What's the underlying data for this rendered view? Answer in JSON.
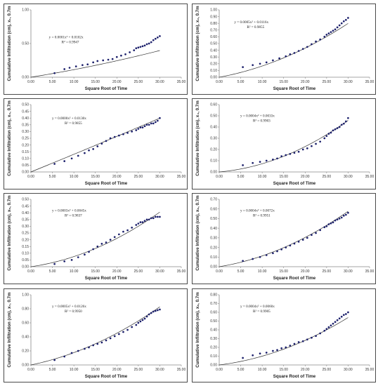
{
  "chart_data": [
    {
      "type": "scatter",
      "xlabel": "Square Root of Time",
      "ylabel": "Cumulative Infiltration (cm), x₁, 0.7m",
      "xlim": [
        0,
        35
      ],
      "ylim": [
        0,
        1.0
      ],
      "xticks": [
        "0.00",
        "5.00",
        "10.00",
        "15.00",
        "20.00",
        "25.00",
        "30.00",
        "35.00"
      ],
      "yticks": [
        "0.00",
        "0.50",
        "1.00"
      ],
      "equation": "y = 0.0001x² + 0.0102x",
      "r2": "R² = 0.9947",
      "fit": {
        "a": 0.0001,
        "b": 0.0102
      },
      "series": [
        {
          "x": [
            5.5,
            7.8,
            9.0,
            10.5,
            12.0,
            13.2,
            14.5,
            15.5,
            16.8,
            18.0,
            19.0,
            20.0,
            21.0,
            22.0,
            23.0,
            24.0,
            24.5,
            25.0,
            25.5,
            26.0,
            26.5,
            27.0,
            27.5,
            28.0,
            28.5,
            29.0,
            29.5,
            30.0
          ],
          "y": [
            0.06,
            0.12,
            0.14,
            0.16,
            0.18,
            0.19,
            0.22,
            0.24,
            0.25,
            0.26,
            0.27,
            0.3,
            0.32,
            0.34,
            0.37,
            0.4,
            0.43,
            0.44,
            0.45,
            0.46,
            0.47,
            0.49,
            0.5,
            0.52,
            0.55,
            0.57,
            0.59,
            0.61
          ]
        }
      ]
    },
    {
      "type": "scatter",
      "xlabel": "Square Root of Time",
      "ylabel": "Cumulative Infiltration (cm), x₂, 0.7m",
      "xlim": [
        0,
        35
      ],
      "ylim": [
        0,
        1.0
      ],
      "xticks": [
        "0.00",
        "5.00",
        "10.00",
        "15.00",
        "20.00",
        "25.00",
        "30.00",
        "35.00"
      ],
      "yticks": [
        "0.00",
        "0.10",
        "0.20",
        "0.30",
        "0.40",
        "0.50",
        "0.60",
        "0.70",
        "0.80",
        "0.90",
        "1.00"
      ],
      "equation": "y = 0.0005x² + 0.0116x",
      "r2": "R² = 0.9855",
      "fit": {
        "a": 0.0005,
        "b": 0.0116
      },
      "series": [
        {
          "x": [
            5.5,
            7.8,
            9.5,
            11.0,
            12.5,
            14.0,
            15.5,
            16.5,
            17.5,
            18.5,
            19.5,
            20.5,
            21.5,
            22.5,
            23.5,
            24.5,
            25.0,
            25.5,
            26.0,
            26.5,
            27.0,
            27.5,
            28.0,
            28.5,
            29.0,
            29.5,
            30.0
          ],
          "y": [
            0.15,
            0.18,
            0.2,
            0.22,
            0.25,
            0.28,
            0.31,
            0.34,
            0.36,
            0.39,
            0.42,
            0.45,
            0.49,
            0.53,
            0.56,
            0.6,
            0.63,
            0.65,
            0.67,
            0.69,
            0.71,
            0.74,
            0.77,
            0.8,
            0.83,
            0.85,
            0.88
          ]
        }
      ]
    },
    {
      "type": "scatter",
      "xlabel": "Square Root of Time",
      "ylabel": "Cumulative Infiltration (cm), x₃, 0.7m",
      "xlim": [
        0,
        35
      ],
      "ylim": [
        0,
        0.5
      ],
      "xticks": [
        "0.00",
        "5.00",
        "10.00",
        "15.00",
        "20.00",
        "25.00",
        "30.00",
        "35.00"
      ],
      "yticks": [
        "0.00",
        "0.05",
        "0.10",
        "0.15",
        "0.20",
        "0.25",
        "0.30",
        "0.35",
        "0.40",
        "0.45",
        "0.50"
      ],
      "equation": "y = 0.0000x² + 0.0130x",
      "r2": "R² = 0.9855",
      "fit": {
        "a": 1e-05,
        "b": 0.013
      },
      "series": [
        {
          "x": [
            5.5,
            7.8,
            9.5,
            11.0,
            12.5,
            13.5,
            14.5,
            15.5,
            16.5,
            17.5,
            18.5,
            19.5,
            20.5,
            21.5,
            22.5,
            23.5,
            24.5,
            25.0,
            25.5,
            26.0,
            26.5,
            27.0,
            27.5,
            28.0,
            28.5,
            29.0,
            29.5,
            30.0
          ],
          "y": [
            0.06,
            0.08,
            0.1,
            0.12,
            0.14,
            0.16,
            0.17,
            0.19,
            0.21,
            0.23,
            0.25,
            0.26,
            0.27,
            0.28,
            0.29,
            0.3,
            0.31,
            0.32,
            0.33,
            0.33,
            0.34,
            0.35,
            0.35,
            0.36,
            0.36,
            0.37,
            0.38,
            0.4
          ]
        }
      ]
    },
    {
      "type": "scatter",
      "xlabel": "Square Root of Time",
      "ylabel": "Cumulative Infiltration (cm), x₄, 0.7m",
      "xlim": [
        0,
        35
      ],
      "ylim": [
        0,
        0.6
      ],
      "xticks": [
        "0.00",
        "5.00",
        "10.00",
        "15.00",
        "20.00",
        "25.00",
        "30.00",
        "35.00"
      ],
      "yticks": [
        "0.00",
        "0.10",
        "0.20",
        "0.30",
        "0.40",
        "0.50",
        "0.60"
      ],
      "equation": "y = 0.0004x² + 0.0033x",
      "r2": "R² = 0.9903",
      "fit": {
        "a": 0.0004,
        "b": 0.0033
      },
      "series": [
        {
          "x": [
            5.5,
            7.8,
            9.5,
            11.0,
            12.5,
            13.5,
            14.5,
            15.5,
            16.5,
            17.5,
            18.5,
            19.5,
            20.5,
            21.5,
            22.5,
            23.5,
            24.5,
            25.0,
            25.5,
            26.0,
            26.5,
            27.0,
            27.5,
            28.0,
            28.5,
            29.0,
            29.5,
            30.0
          ],
          "y": [
            0.06,
            0.08,
            0.09,
            0.1,
            0.11,
            0.12,
            0.14,
            0.15,
            0.16,
            0.17,
            0.18,
            0.2,
            0.21,
            0.23,
            0.25,
            0.27,
            0.3,
            0.32,
            0.34,
            0.35,
            0.37,
            0.38,
            0.39,
            0.4,
            0.42,
            0.43,
            0.45,
            0.48
          ]
        }
      ]
    },
    {
      "type": "scatter",
      "xlabel": "Square Root of Time",
      "ylabel": "Cumulative Infiltration (cm), x₅, 0.7m",
      "xlim": [
        0,
        35
      ],
      "ylim": [
        0,
        0.5
      ],
      "xticks": [
        "0.00",
        "5.00",
        "10.00",
        "15.00",
        "20.00",
        "25.00",
        "30.00",
        "35.00"
      ],
      "yticks": [
        "0.00",
        "0.05",
        "0.10",
        "0.15",
        "0.20",
        "0.25",
        "0.30",
        "0.35",
        "0.40",
        "0.45",
        "0.50"
      ],
      "equation": "y = 0.0003x² + 0.0045x",
      "r2": "R² = 0.9837",
      "fit": {
        "a": 0.0003,
        "b": 0.0045
      },
      "series": [
        {
          "x": [
            5.5,
            7.8,
            9.5,
            11.0,
            12.5,
            13.5,
            14.5,
            15.5,
            16.5,
            17.5,
            18.5,
            19.5,
            20.5,
            21.5,
            22.5,
            23.5,
            24.5,
            25.0,
            25.5,
            26.0,
            26.5,
            27.0,
            27.5,
            28.0,
            28.5,
            29.0,
            29.5,
            30.0
          ],
          "y": [
            0.02,
            0.04,
            0.05,
            0.07,
            0.09,
            0.11,
            0.13,
            0.15,
            0.17,
            0.18,
            0.2,
            0.22,
            0.24,
            0.26,
            0.27,
            0.29,
            0.31,
            0.32,
            0.33,
            0.33,
            0.34,
            0.35,
            0.35,
            0.36,
            0.36,
            0.37,
            0.37,
            0.37
          ]
        }
      ]
    },
    {
      "type": "scatter",
      "xlabel": "Square Root of Time",
      "ylabel": "Cumulative Infiltration (cm), x₆, 0.7m",
      "xlim": [
        0,
        35
      ],
      "ylim": [
        0,
        0.7
      ],
      "xticks": [
        "0.00",
        "5.00",
        "10.00",
        "15.00",
        "20.00",
        "25.00",
        "30.00",
        "35.00"
      ],
      "yticks": [
        "0.00",
        "0.10",
        "0.20",
        "0.30",
        "0.40",
        "0.50",
        "0.60",
        "0.70"
      ],
      "equation": "y = 0.0004x² + 0.0072x",
      "r2": "R² = 0.9951",
      "fit": {
        "a": 0.0004,
        "b": 0.0072
      },
      "series": [
        {
          "x": [
            5.5,
            7.8,
            9.5,
            11.0,
            12.5,
            13.5,
            14.5,
            15.5,
            16.5,
            17.5,
            18.5,
            19.5,
            20.5,
            21.5,
            22.5,
            23.5,
            24.5,
            25.0,
            25.5,
            26.0,
            26.5,
            27.0,
            27.5,
            28.0,
            28.5,
            29.0,
            29.5,
            30.0
          ],
          "y": [
            0.06,
            0.08,
            0.1,
            0.12,
            0.14,
            0.16,
            0.18,
            0.2,
            0.22,
            0.24,
            0.26,
            0.28,
            0.3,
            0.33,
            0.35,
            0.38,
            0.41,
            0.42,
            0.44,
            0.45,
            0.46,
            0.48,
            0.49,
            0.5,
            0.51,
            0.53,
            0.54,
            0.56
          ]
        }
      ]
    },
    {
      "type": "scatter",
      "xlabel": "Square Root of Time",
      "ylabel": "Cumulative Infiltration (cm), x₇, 0.7m",
      "xlim": [
        0,
        35
      ],
      "ylim": [
        0,
        1.0
      ],
      "xticks": [
        "0.00",
        "5.00",
        "10.00",
        "15.00",
        "20.00",
        "25.00",
        "30.00",
        "35.00"
      ],
      "yticks": [
        "0.00",
        "0.20",
        "0.40",
        "0.60",
        "0.80",
        "1.00"
      ],
      "equation": "y = 0.0005x² + 0.0126x",
      "r2": "R² = 0.9950",
      "fit": {
        "a": 0.0005,
        "b": 0.0126
      },
      "series": [
        {
          "x": [
            5.5,
            7.8,
            9.5,
            11.0,
            12.5,
            13.5,
            14.5,
            15.5,
            16.5,
            17.5,
            18.5,
            19.5,
            20.5,
            21.5,
            22.5,
            23.5,
            24.5,
            25.0,
            25.5,
            26.0,
            26.5,
            27.0,
            27.5,
            28.0,
            28.5,
            29.0,
            29.5,
            30.0
          ],
          "y": [
            0.07,
            0.12,
            0.17,
            0.2,
            0.23,
            0.25,
            0.28,
            0.3,
            0.32,
            0.35,
            0.38,
            0.41,
            0.44,
            0.47,
            0.5,
            0.54,
            0.57,
            0.6,
            0.62,
            0.64,
            0.66,
            0.69,
            0.72,
            0.74,
            0.76,
            0.77,
            0.78,
            0.79
          ]
        }
      ]
    },
    {
      "type": "scatter",
      "xlabel": "Square Root of Time",
      "ylabel": "Cumulative Infiltration (cm), x₈, 0.7m",
      "xlim": [
        0,
        35
      ],
      "ylim": [
        0,
        0.8
      ],
      "xticks": [
        "0.00",
        "5.00",
        "10.00",
        "15.00",
        "20.00",
        "25.00",
        "30.00",
        "35.00"
      ],
      "yticks": [
        "0.00",
        "0.10",
        "0.20",
        "0.30",
        "0.40",
        "0.50",
        "0.60",
        "0.70",
        "0.80"
      ],
      "equation": "y = 0.0004x² + 0.0060x",
      "r2": "R² = 0.9905",
      "fit": {
        "a": 0.0004,
        "b": 0.006
      },
      "series": [
        {
          "x": [
            5.5,
            7.8,
            9.5,
            11.0,
            12.5,
            13.5,
            14.5,
            15.5,
            16.5,
            17.5,
            18.5,
            19.5,
            20.5,
            21.5,
            22.5,
            23.5,
            24.5,
            25.0,
            25.5,
            26.0,
            26.5,
            27.0,
            27.5,
            28.0,
            28.5,
            29.0,
            29.5,
            30.0
          ],
          "y": [
            0.08,
            0.11,
            0.13,
            0.14,
            0.16,
            0.17,
            0.19,
            0.2,
            0.22,
            0.24,
            0.26,
            0.27,
            0.29,
            0.31,
            0.33,
            0.36,
            0.39,
            0.41,
            0.43,
            0.45,
            0.47,
            0.49,
            0.51,
            0.53,
            0.55,
            0.57,
            0.58,
            0.6
          ]
        }
      ]
    }
  ],
  "colors": {
    "points": "#1b1f6b",
    "curve": "#333333",
    "axis": "#888888"
  }
}
